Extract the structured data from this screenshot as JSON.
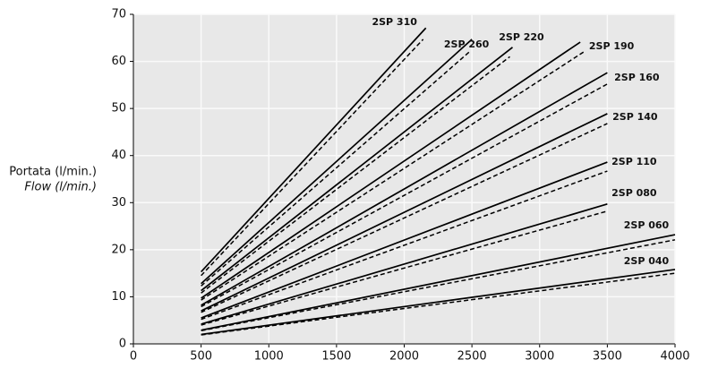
{
  "chart_data": {
    "type": "line",
    "y_label": [
      "Portata (l/min.)",
      "Flow (l/min.)"
    ],
    "xlim": [
      0,
      4000
    ],
    "xticks": [
      0,
      500,
      1000,
      1500,
      2000,
      2500,
      3000,
      3500,
      4000
    ],
    "ylim": [
      0,
      70
    ],
    "yticks": [
      0,
      10,
      20,
      30,
      40,
      50,
      60,
      70
    ],
    "grid": true,
    "color": "#000000",
    "series": [
      {
        "name": "2SP 310",
        "x": [
          500,
          2160
        ],
        "values": [
          15.3,
          67.1
        ],
        "x_dashed": [
          500,
          2140
        ],
        "values_dashed": [
          14.5,
          64.7
        ]
      },
      {
        "name": "2SP 260",
        "x": [
          500,
          2500
        ],
        "values": [
          12.8,
          64.7
        ],
        "x_dashed": [
          500,
          2480
        ],
        "values_dashed": [
          12.3,
          62.0
        ]
      },
      {
        "name": "2SP 220",
        "x": [
          500,
          2800
        ],
        "values": [
          11.3,
          63.0
        ],
        "x_dashed": [
          500,
          2780
        ],
        "values_dashed": [
          10.8,
          61.0
        ]
      },
      {
        "name": "2SP 190",
        "x": [
          500,
          3300
        ],
        "values": [
          9.7,
          64.1
        ],
        "x_dashed": [
          500,
          3325
        ],
        "values_dashed": [
          9.3,
          62.0
        ]
      },
      {
        "name": "2SP 160",
        "x": [
          500,
          3500
        ],
        "values": [
          8.2,
          57.6
        ],
        "x_dashed": [
          500,
          3500
        ],
        "values_dashed": [
          7.9,
          55.2
        ]
      },
      {
        "name": "2SP 140",
        "x": [
          500,
          3500
        ],
        "values": [
          7.0,
          48.9
        ],
        "x_dashed": [
          500,
          3500
        ],
        "values_dashed": [
          6.7,
          46.8
        ]
      },
      {
        "name": "2SP 110",
        "x": [
          500,
          3500
        ],
        "values": [
          5.5,
          38.6
        ],
        "x_dashed": [
          500,
          3500
        ],
        "values_dashed": [
          5.2,
          36.7
        ]
      },
      {
        "name": "2SP 080",
        "x": [
          500,
          3500
        ],
        "values": [
          4.2,
          29.7
        ],
        "x_dashed": [
          500,
          3500
        ],
        "values_dashed": [
          4.0,
          28.2
        ]
      },
      {
        "name": "2SP 060",
        "x": [
          500,
          4000
        ],
        "values": [
          2.9,
          23.2
        ],
        "x_dashed": [
          500,
          4000
        ],
        "values_dashed": [
          2.8,
          22.1
        ]
      },
      {
        "name": "2SP 040",
        "x": [
          500,
          4000
        ],
        "values": [
          2.0,
          15.8
        ],
        "x_dashed": [
          500,
          4000
        ],
        "values_dashed": [
          1.9,
          15.0
        ]
      }
    ]
  }
}
